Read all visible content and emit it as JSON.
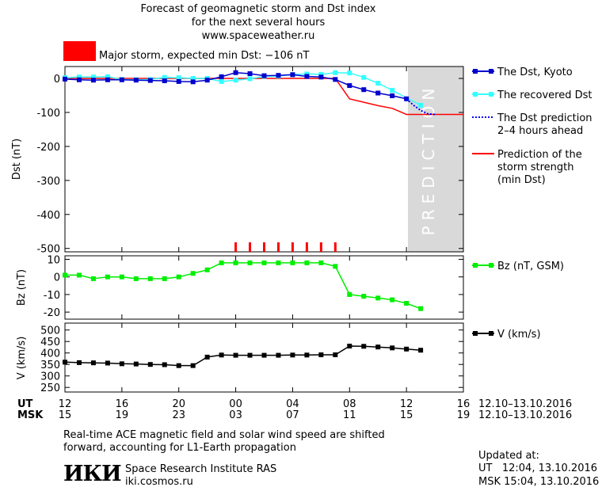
{
  "header": {
    "title_line1": "Forecast of geomagnetic storm and Dst index",
    "title_line2": "for the next several hours",
    "site": "www.spaceweather.ru",
    "storm_label": "Major storm, expected min Dst: −106 nT",
    "storm_color": "#ff0000"
  },
  "legend": {
    "dst_kyoto": "The Dst, Kyoto",
    "recovered": "The recovered Dst",
    "prediction_line1": "The Dst prediction",
    "prediction_line2": "2–4 hours ahead",
    "strength_line1": "Prediction of the",
    "strength_line2": "storm strength",
    "strength_line3": "(min Dst)",
    "bz": "Bz (nT, GSM)",
    "v": "V (km/s)"
  },
  "prediction_band_label": "PREDICTION",
  "time_axis": {
    "ut_label": "UT",
    "msk_label": "MSK",
    "ut_ticks": [
      "12",
      "16",
      "20",
      "00",
      "04",
      "08",
      "12",
      "16"
    ],
    "msk_ticks": [
      "15",
      "19",
      "23",
      "03",
      "07",
      "11",
      "15",
      "19"
    ],
    "date_range_ut": "12.10–13.10.2016",
    "date_range_msk": "12.10–13.10.2016"
  },
  "footer": {
    "note_line1": "Real-time ACE magnetic field and solar wind speed are shifted",
    "note_line2": "forward, accounting for L1-Earth propagation",
    "logo_text": "ИКИ",
    "institute": "Space Research Institute RAS",
    "site": "iki.cosmos.ru",
    "updated_label": "Updated at:",
    "updated_ut": "UT   12:04, 13.10.2016",
    "updated_msk": "MSK 15:04, 13.10.2016"
  },
  "colors": {
    "dst_kyoto": "#0000cc",
    "recovered": "#33ffff",
    "prediction": "#0000ff",
    "storm_strength": "#ff0000",
    "bz": "#00ee00",
    "v": "#000000",
    "prediction_band": "#d9d9d9"
  },
  "chart_data": [
    {
      "type": "line",
      "panel": "dst",
      "ylabel": "Dst (nT)",
      "x_unit": "hours from 12 UT 12.10.2016",
      "xlim": [
        0,
        28
      ],
      "ylim": [
        -510,
        35
      ],
      "yticks": [
        0,
        -100,
        -200,
        -300,
        -400,
        -500
      ],
      "series": [
        {
          "name": "The Dst, Kyoto",
          "x": [
            0,
            1,
            2,
            3,
            4,
            5,
            6,
            7,
            8,
            9,
            10,
            11,
            12,
            13,
            14,
            15,
            16,
            17,
            18,
            19,
            20,
            21,
            22,
            23,
            24
          ],
          "values": [
            -2,
            -4,
            -5,
            -4,
            -4,
            -5,
            -6,
            -7,
            -9,
            -10,
            -5,
            5,
            17,
            14,
            8,
            9,
            11,
            6,
            4,
            -3,
            -21,
            -33,
            -43,
            -51,
            -60
          ]
        },
        {
          "name": "The recovered Dst",
          "x": [
            0,
            1,
            2,
            3,
            4,
            5,
            6,
            7,
            8,
            9,
            10,
            11,
            12,
            13,
            14,
            15,
            16,
            17,
            18,
            19,
            20,
            21,
            22,
            23,
            25
          ],
          "values": [
            2,
            4,
            4,
            5,
            -3,
            -4,
            -3,
            3,
            2,
            0,
            0,
            -9,
            -5,
            -1,
            6,
            7,
            11,
            13,
            12,
            17,
            16,
            3,
            -14,
            -35,
            -79
          ]
        },
        {
          "name": "The Dst prediction 2–4 hours ahead",
          "x": [
            24,
            24.5,
            25,
            25.5,
            26
          ],
          "values": [
            -60,
            -79,
            -94,
            -104,
            -106
          ]
        },
        {
          "name": "Prediction of the storm strength (min Dst)",
          "x": [
            0,
            19,
            20,
            21,
            22,
            23,
            24,
            28
          ],
          "values": [
            0,
            0,
            -60,
            -70,
            -80,
            -88,
            -106,
            -106
          ]
        }
      ],
      "storm_markers_x": [
        12,
        13,
        14,
        15,
        16,
        17,
        18,
        19
      ],
      "prediction_band_x": [
        24,
        28
      ]
    },
    {
      "type": "line",
      "panel": "bz",
      "ylabel": "Bz (nT)",
      "xlim": [
        0,
        28
      ],
      "ylim": [
        -24,
        12
      ],
      "yticks": [
        10,
        0,
        -10,
        -20
      ],
      "series": [
        {
          "name": "Bz (nT, GSM)",
          "x": [
            0,
            1,
            2,
            3,
            4,
            5,
            6,
            7,
            8,
            9,
            10,
            11,
            12,
            13,
            14,
            15,
            16,
            17,
            18,
            19,
            20,
            21,
            22,
            23,
            24,
            25
          ],
          "values": [
            1,
            1,
            -1,
            0,
            0,
            -1,
            -1,
            -1,
            0,
            2,
            4,
            8,
            8,
            8,
            8,
            8,
            8,
            8,
            8,
            6,
            -10,
            -11,
            -12,
            -13,
            -15,
            -18
          ]
        }
      ]
    },
    {
      "type": "line",
      "panel": "v",
      "ylabel": "V (km/s)",
      "xlim": [
        0,
        28
      ],
      "ylim": [
        230,
        530
      ],
      "yticks": [
        500,
        450,
        400,
        350,
        300,
        250
      ],
      "series": [
        {
          "name": "V (km/s)",
          "x": [
            0,
            1,
            2,
            3,
            4,
            5,
            6,
            7,
            8,
            9,
            10,
            11,
            12,
            13,
            14,
            15,
            16,
            17,
            18,
            19,
            20,
            21,
            22,
            23,
            24,
            25
          ],
          "values": [
            360,
            358,
            357,
            356,
            353,
            352,
            350,
            349,
            345,
            345,
            382,
            391,
            390,
            390,
            390,
            390,
            391,
            391,
            392,
            392,
            430,
            429,
            426,
            422,
            417,
            412
          ]
        }
      ]
    }
  ]
}
